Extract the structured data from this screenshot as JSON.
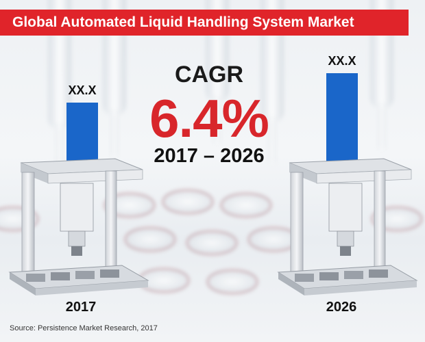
{
  "title": "Global Automated Liquid Handling System Market",
  "cagr": {
    "label": "CAGR",
    "value": "6.4%",
    "period": "2017 – 2026"
  },
  "source": "Source: Persistence Market Research, 2017",
  "colors": {
    "title_bg": "#e0242a",
    "bar": "#1a66c9",
    "cagr_value": "#d8262b"
  },
  "chart_data": {
    "type": "bar",
    "title": "Global Automated Liquid Handling System Market",
    "categories": [
      "2017",
      "2026"
    ],
    "data_labels": [
      "XX.X",
      "XX.X"
    ],
    "values": [
      90,
      133
    ],
    "ylim": [
      0,
      140
    ],
    "grid": false,
    "legend": "none",
    "annotations": [
      "CAGR",
      "6.4%",
      "2017 – 2026"
    ]
  }
}
